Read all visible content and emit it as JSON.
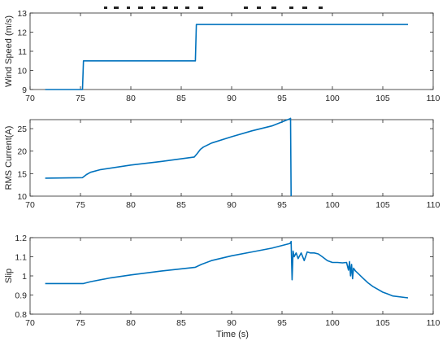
{
  "figure": {
    "xlabel": "Time (s)",
    "x_ticks": [
      "70",
      "75",
      "80",
      "85",
      "90",
      "95",
      "100",
      "105",
      "110"
    ],
    "line_color": "#0072BD"
  },
  "chart_data": [
    {
      "type": "line",
      "ylabel": "Wind Speed (m/s)",
      "xlim": [
        70,
        110
      ],
      "ylim": [
        9,
        13
      ],
      "y_ticks": [
        "9",
        "10",
        "11",
        "12",
        "13"
      ],
      "x": [
        71.5,
        75.2,
        75.3,
        86.4,
        86.5,
        107.5
      ],
      "y": [
        9.0,
        9.0,
        10.5,
        10.5,
        12.4,
        12.4
      ]
    },
    {
      "type": "line",
      "ylabel": "RMS Current(A)",
      "xlim": [
        70,
        110
      ],
      "ylim": [
        10,
        27
      ],
      "y_ticks": [
        "10",
        "15",
        "20",
        "25"
      ],
      "x": [
        71.5,
        75.2,
        75.6,
        76.0,
        77.0,
        80.0,
        83.0,
        86.3,
        86.6,
        86.9,
        87.2,
        88.0,
        90.0,
        92.0,
        94.0,
        95.8,
        95.85,
        95.9
      ],
      "y": [
        14.0,
        14.1,
        14.8,
        15.3,
        15.9,
        16.9,
        17.7,
        18.7,
        19.5,
        20.4,
        20.9,
        21.8,
        23.2,
        24.5,
        25.6,
        27.2,
        27.3,
        10.0
      ]
    },
    {
      "type": "line",
      "ylabel": "Slip",
      "xlim": [
        70,
        110
      ],
      "ylim": [
        0.8,
        1.2
      ],
      "y_ticks": [
        "0.8",
        "0.9",
        "1",
        "1.1",
        "1.2"
      ],
      "x": [
        71.5,
        75.3,
        76.0,
        78.0,
        80.0,
        83.0,
        86.4,
        87.0,
        88.0,
        90.0,
        92.0,
        94.0,
        95.8,
        95.9,
        96.0,
        96.1,
        96.2,
        96.4,
        96.6,
        96.9,
        97.2,
        97.5,
        97.8,
        98.2,
        98.6,
        99.0,
        99.5,
        100.0,
        100.5,
        101.0,
        101.4,
        101.6,
        101.7,
        101.8,
        101.9,
        102.0,
        102.1,
        102.3,
        102.6,
        103.0,
        103.5,
        104.0,
        104.5,
        105.0,
        105.5,
        106.0,
        107.5
      ],
      "y": [
        0.96,
        0.96,
        0.97,
        0.99,
        1.005,
        1.025,
        1.045,
        1.06,
        1.08,
        1.105,
        1.125,
        1.145,
        1.17,
        1.18,
        0.98,
        1.13,
        1.1,
        1.12,
        1.09,
        1.12,
        1.08,
        1.125,
        1.12,
        1.12,
        1.115,
        1.1,
        1.08,
        1.07,
        1.07,
        1.068,
        1.07,
        1.03,
        1.075,
        1.0,
        1.06,
        0.985,
        1.04,
        1.025,
        1.01,
        0.99,
        0.965,
        0.945,
        0.93,
        0.915,
        0.905,
        0.895,
        0.885
      ]
    }
  ]
}
